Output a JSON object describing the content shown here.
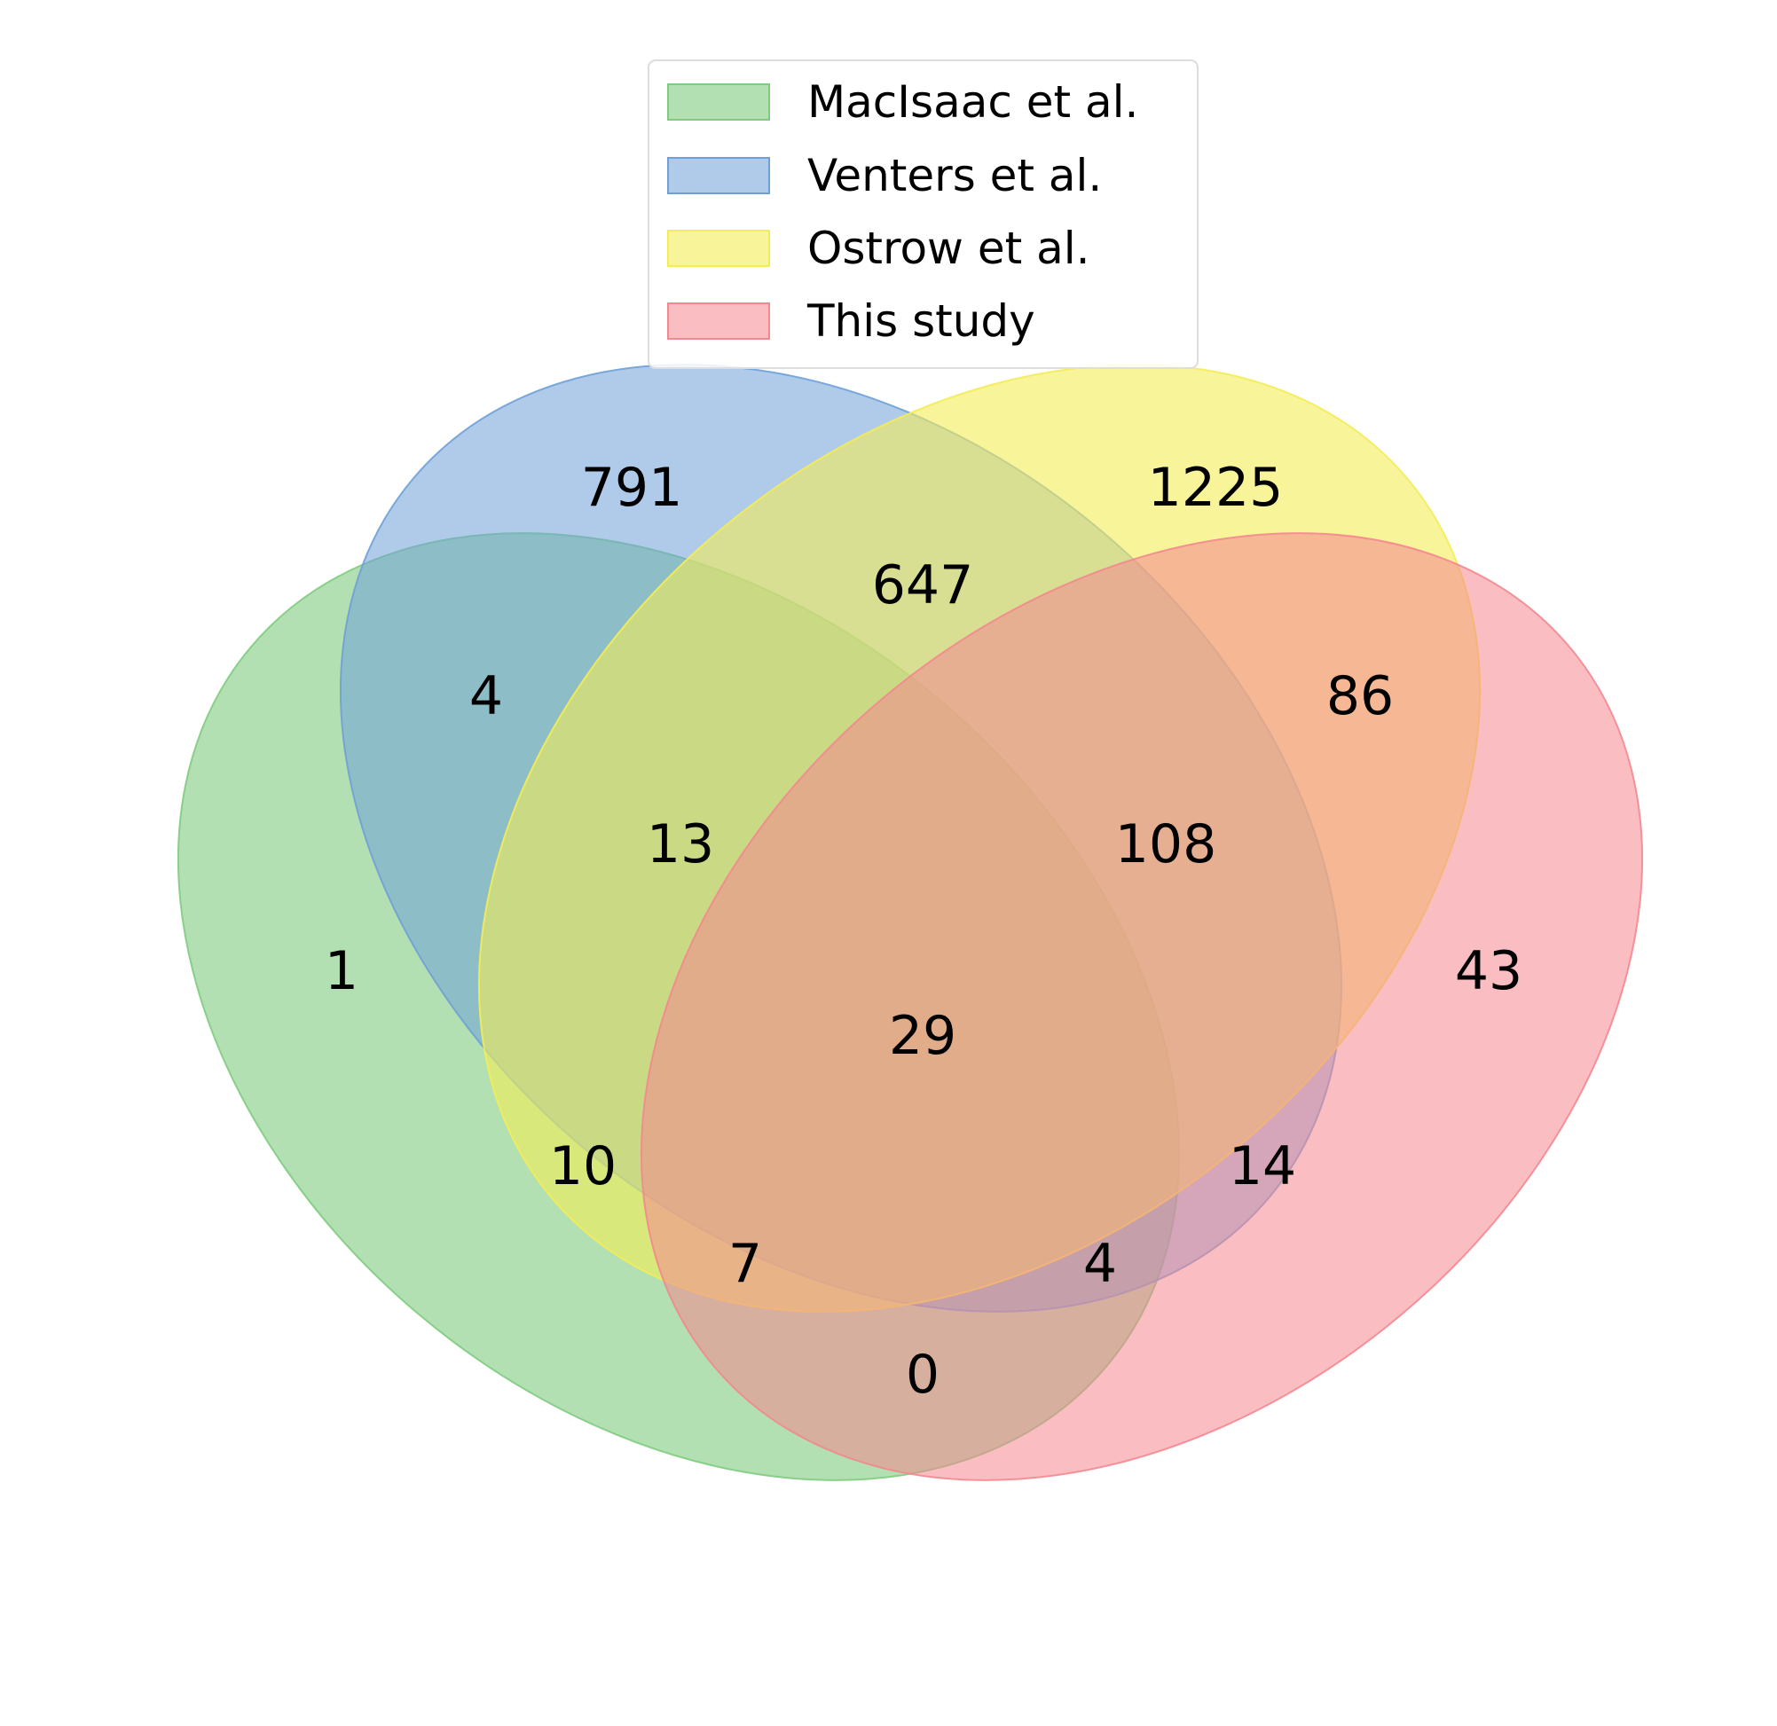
{
  "diagram": {
    "type": "venn4",
    "sets": [
      {
        "id": "macisaac",
        "label": "MacIsaac et al.",
        "color": "#7fcc7f"
      },
      {
        "id": "venters",
        "label": "Venters et al.",
        "color": "#6fa0d8"
      },
      {
        "id": "ostrow",
        "label": "Ostrow et al.",
        "color": "#f4ec56"
      },
      {
        "id": "this",
        "label": "This study",
        "color": "#f4878f"
      }
    ],
    "regions": [
      {
        "sets": [
          "venters"
        ],
        "value": "791"
      },
      {
        "sets": [
          "ostrow"
        ],
        "value": "1225"
      },
      {
        "sets": [
          "venters",
          "ostrow"
        ],
        "value": "647"
      },
      {
        "sets": [
          "macisaac",
          "venters"
        ],
        "value": "4"
      },
      {
        "sets": [
          "ostrow",
          "this"
        ],
        "value": "86"
      },
      {
        "sets": [
          "macisaac",
          "venters",
          "ostrow"
        ],
        "value": "13"
      },
      {
        "sets": [
          "venters",
          "ostrow",
          "this"
        ],
        "value": "108"
      },
      {
        "sets": [
          "macisaac"
        ],
        "value": "1"
      },
      {
        "sets": [
          "this"
        ],
        "value": "43"
      },
      {
        "sets": [
          "macisaac",
          "venters",
          "ostrow",
          "this"
        ],
        "value": "29"
      },
      {
        "sets": [
          "macisaac",
          "ostrow"
        ],
        "value": "10"
      },
      {
        "sets": [
          "venters",
          "this"
        ],
        "value": "14"
      },
      {
        "sets": [
          "macisaac",
          "ostrow",
          "this"
        ],
        "value": "7"
      },
      {
        "sets": [
          "macisaac",
          "venters",
          "this"
        ],
        "value": "4"
      },
      {
        "sets": [
          "macisaac",
          "this"
        ],
        "value": "0"
      }
    ]
  }
}
